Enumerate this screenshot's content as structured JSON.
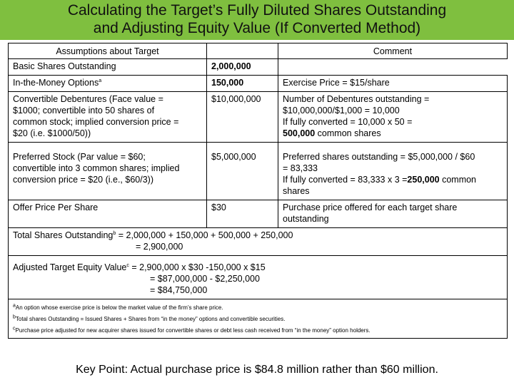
{
  "title_line1": "Calculating the Target’s Fully Diluted Shares Outstanding",
  "title_line2": "and Adjusting Equity Value (If Converted Method)",
  "headers": {
    "assumptions": "Assumptions about Target",
    "comment": "Comment"
  },
  "rows": [
    {
      "label": "Basic Shares Outstanding",
      "value": "2,000,000",
      "comment": ""
    },
    {
      "label": "In-the-Money Options",
      "label_sup": "a",
      "value": "150,000",
      "comment": "Exercise Price = $15/share"
    },
    {
      "label_lines": [
        "Convertible Debentures (Face value =",
        "$1000; convertible into 50 shares of",
        "common stock; implied conversion price =",
        "$20 (i.e. $1000/50))"
      ],
      "value": "$10,000,000",
      "comment_lines": [
        "Number of Debentures outstanding =",
        "$10,000,000/$1,000 = 10,000",
        "If fully converted = 10,000 x 50 ="
      ],
      "comment_bold": "500,000",
      "comment_tail": " common shares"
    },
    {
      "label_lines": [
        "Preferred Stock (Par value = $60;",
        "convertible into 3 common shares; implied",
        "conversion price = $20 (i.e., $60/3))"
      ],
      "value": "$5,000,000",
      "comment_lines": [
        "Preferred shares outstanding = $5,000,000 / $60",
        "= 83,333"
      ],
      "comment_pre": "If fully converted = 83,333 x 3 =",
      "comment_bold": "250,000",
      "comment_tail": " common",
      "comment_last": "shares"
    },
    {
      "label": "Offer Price Per Share",
      "value": "$30",
      "comment_lines": [
        "Purchase price offered for each target share",
        "outstanding"
      ]
    }
  ],
  "totals": {
    "line1": "Total Shares Outstanding",
    "sup": "b",
    "line1_rest": " = 2,000,000 + 150,000 + 500,000 + 250,000",
    "line2": "= 2,900,000"
  },
  "adjusted": {
    "line1": "Adjusted Target Equity Value",
    "sup": "c",
    "line1_rest": " = 2,900,000 x $30 -150,000 x $15",
    "line2": "= $87,000,000 - $2,250,000",
    "line3": "= $84,750,000"
  },
  "footnotes": [
    {
      "sup": "a",
      "text": "An option whose exercise price is below the market value of the firm’s share price."
    },
    {
      "sup": "b",
      "text": "Total shares Outstanding = Issued Shares + Shares from “in the money” options and convertible securities."
    },
    {
      "sup": "c",
      "text": "Purchase price adjusted for new acquirer shares issued for convertible shares or debt less cash received from “in the money” option holders."
    }
  ],
  "key_point": "Key Point: Actual purchase price is $84.8 million rather than $60 million.",
  "colors": {
    "title_bar": "#7fbf3f"
  }
}
